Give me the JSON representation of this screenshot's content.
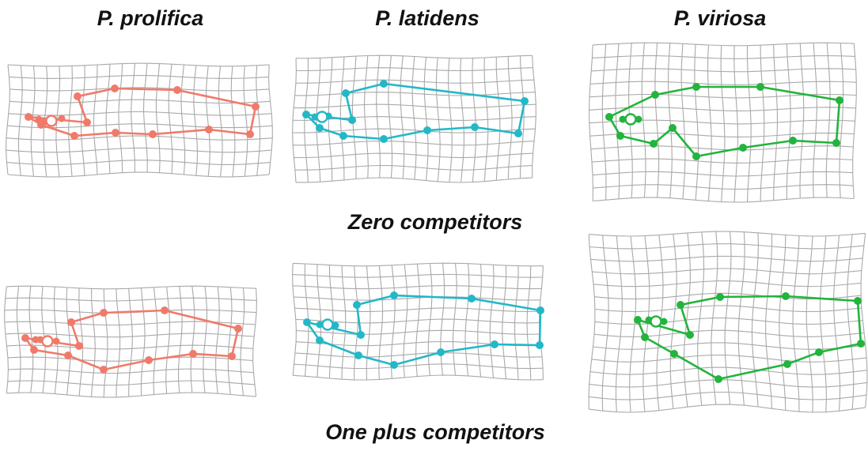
{
  "titles": {
    "species": [
      "P. prolifica",
      "P. latidens",
      "P. viriosa"
    ],
    "rows": [
      "Zero competitors",
      "One plus competitors"
    ]
  },
  "colors": {
    "grid": "#a9a9a9",
    "species": [
      "#f07a6a",
      "#22b8c8",
      "#22b43c"
    ]
  }
}
